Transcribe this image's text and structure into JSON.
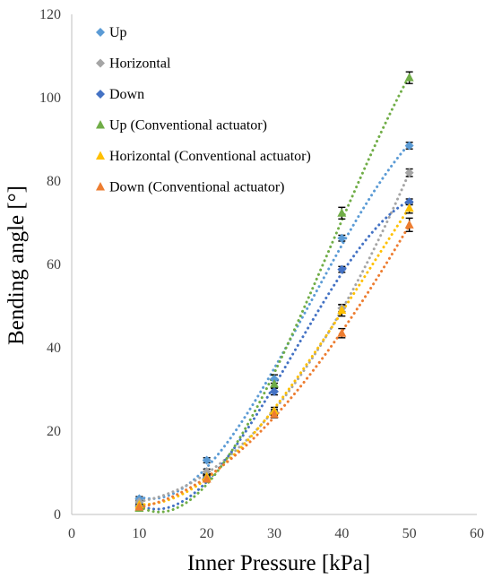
{
  "chart_data": {
    "type": "scatter",
    "xlabel": "Inner Pressure [kPa]",
    "ylabel": "Bending angle [°]",
    "xlim": [
      0,
      60
    ],
    "ylim": [
      0,
      120
    ],
    "xticks": [
      0,
      10,
      20,
      30,
      40,
      50,
      60
    ],
    "yticks": [
      0,
      20,
      40,
      60,
      80,
      100,
      120
    ],
    "grid": false,
    "legend_position": "top-left",
    "trendline": "polynomial, dotted",
    "series": [
      {
        "name": "Up",
        "marker": "diamond",
        "color": "#5B9BD5",
        "trend_color": "#5B9BD5",
        "x": [
          10,
          20,
          30,
          40,
          50
        ],
        "y": [
          3.8,
          13,
          32.5,
          66.3,
          88.5
        ],
        "err": [
          0.5,
          0.6,
          1.0,
          0.7,
          0.8
        ]
      },
      {
        "name": "Horizontal",
        "marker": "diamond",
        "color": "#A5A5A5",
        "trend_color": "#A5A5A5",
        "x": [
          10,
          20,
          30,
          40,
          50
        ],
        "y": [
          3.0,
          10.3,
          24.5,
          49.5,
          82
        ],
        "err": [
          0.5,
          0.6,
          0.7,
          0.8,
          0.9
        ]
      },
      {
        "name": "Down",
        "marker": "diamond",
        "color": "#4472C4",
        "trend_color": "#4472C4",
        "x": [
          10,
          20,
          30,
          40,
          50
        ],
        "y": [
          2.0,
          8.8,
          29.5,
          58.8,
          75
        ],
        "err": [
          0.5,
          0.6,
          0.8,
          0.7,
          0.7
        ]
      },
      {
        "name": "Up (Conventional actuator)",
        "marker": "triangle",
        "color": "#70AD47",
        "trend_color": "#70AD47",
        "x": [
          10,
          20,
          30,
          40,
          50
        ],
        "y": [
          1.5,
          9.0,
          31.3,
          72.3,
          104.8
        ],
        "err": [
          0.6,
          0.7,
          1.0,
          1.4,
          1.4
        ]
      },
      {
        "name": "Horizontal (Conventional actuator)",
        "marker": "triangle",
        "color": "#FFC000",
        "trend_color": "#FFC000",
        "x": [
          10,
          20,
          30,
          40,
          50
        ],
        "y": [
          2.3,
          9.0,
          24.8,
          49.0,
          73.5
        ],
        "err": [
          0.6,
          0.7,
          0.9,
          1.4,
          1.2
        ]
      },
      {
        "name": "Down (Conventional actuator)",
        "marker": "triangle",
        "color": "#ED7D31",
        "trend_color": "#ED7D31",
        "x": [
          10,
          20,
          30,
          40,
          50
        ],
        "y": [
          1.8,
          8.5,
          24.0,
          43.5,
          69.5
        ],
        "err": [
          0.6,
          0.7,
          0.8,
          1.1,
          1.6
        ]
      }
    ]
  }
}
